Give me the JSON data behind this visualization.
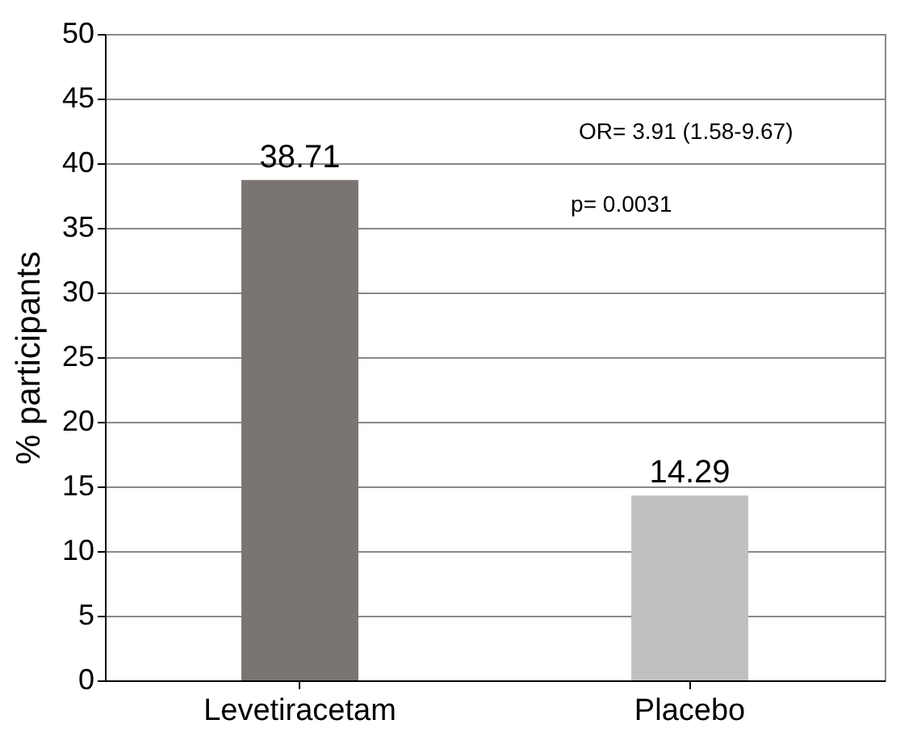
{
  "chart_data": {
    "type": "bar",
    "ylabel": "% participants",
    "categories": [
      "Levetiracetam",
      "Placebo"
    ],
    "values": [
      38.71,
      14.29
    ],
    "colors": [
      "#7a7472",
      "#c0c0c0"
    ],
    "ylim": [
      0,
      50
    ],
    "yticks": [
      0,
      5,
      10,
      15,
      20,
      25,
      30,
      35,
      40,
      45,
      50
    ],
    "grid": "y",
    "data_labels": true,
    "annotations": [
      "OR= 3.91 (1.58-9.67)",
      "p= 0.0031"
    ]
  }
}
